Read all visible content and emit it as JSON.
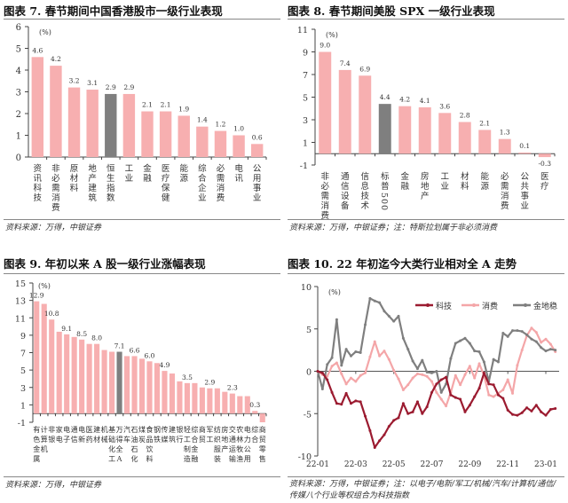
{
  "panels": [
    {
      "title": "图表 7. 春节期间中国香港股市一级行业表现",
      "source": "资料来源：万得，中银证券"
    },
    {
      "title": "图表 8. 春节期间美股 SPX 一级行业表现",
      "source": "资料来源：万得，中银证券；注：特斯拉划属于非必须消费"
    },
    {
      "title": "图表 9. 年初以来 A 股一级行业涨幅表现",
      "source": "资料来源：万得，中银证券"
    },
    {
      "title": "图表 10. 22 年初迄今大类行业相对全 A 走势",
      "source": "资料来源：万得，中银证券；注：以电子/电新/军工/机械/汽车/计算机/通信/传媒八个行业等权组合为科技指数"
    }
  ],
  "colors": {
    "bar": "#F7AFB0",
    "highlight": "#7F7F7F",
    "tech": "#9B1B30",
    "consumer": "#F4A6A8",
    "stable": "#7F7F7F"
  },
  "chart_data": [
    {
      "type": "bar",
      "title": "春节期间中国香港股市一级行业表现",
      "unit_label": "(%)",
      "ylim": [
        0,
        6
      ],
      "yticks": [
        0,
        1,
        2,
        3,
        4,
        5,
        6
      ],
      "categories": [
        "资讯科技",
        "非必需消费",
        "原材料",
        "地产建筑",
        "恒生指数",
        "工业",
        "金融",
        "医疗保健",
        "能源",
        "综合企业",
        "必需消费",
        "电讯",
        "公用事业"
      ],
      "values": [
        4.6,
        4.2,
        3.2,
        3.1,
        2.9,
        2.9,
        2.1,
        2.1,
        1.9,
        1.4,
        1.2,
        1.0,
        0.6
      ],
      "labels": [
        "4.6",
        "4.2",
        "3.2",
        "3.1",
        "2.9",
        "2.9",
        "2.1",
        "2.1",
        "1.9",
        "1.4",
        "1.2",
        "1.0",
        "0.6"
      ],
      "highlight": "恒生指数"
    },
    {
      "type": "bar",
      "title": "春节期间美股 SPX 一级行业表现",
      "unit_label": "(%)",
      "ylim": [
        -1,
        11
      ],
      "yticks": [
        -1,
        1,
        3,
        5,
        7,
        9,
        11
      ],
      "categories": [
        "非必需消费",
        "通信设备",
        "信息技术",
        "标普500",
        "金融",
        "房地产",
        "工业",
        "材料",
        "能源",
        "必需消费",
        "公共事业",
        "医疗"
      ],
      "values": [
        9.0,
        7.4,
        6.9,
        4.4,
        4.2,
        4.1,
        3.6,
        2.8,
        2.1,
        1.3,
        0.1,
        -0.3
      ],
      "labels": [
        "9.0",
        "7.4",
        "6.9",
        "4.4",
        "4.2",
        "4.1",
        "3.6",
        "2.8",
        "2.1",
        "1.3",
        "0.1",
        "-0.3"
      ],
      "highlight": "标普500"
    },
    {
      "type": "bar",
      "title": "年初以来 A 股一级行业涨幅表现",
      "unit_label": "(%)",
      "ylim": [
        -1,
        15
      ],
      "yticks": [
        -1,
        1,
        3,
        5,
        7,
        9,
        11,
        13,
        15
      ],
      "categories": [
        "有色金属",
        "计算机",
        "非银",
        "家电",
        "电子",
        "通信",
        "电新",
        "医药",
        "建材",
        "机械",
        "基础化工",
        "万得全A",
        "汽车",
        "石油石化",
        "煤炭",
        "食品饮料",
        "钢铁",
        "传媒",
        "建筑",
        "银行",
        "轻工制造",
        "综合金融",
        "商贸",
        "军工",
        "纺织服装",
        "房地产",
        "交通运输",
        "农林牧渔",
        "电力公用",
        "综合",
        "商贸零售"
      ],
      "values": [
        12.9,
        12.6,
        10.8,
        9.4,
        9.1,
        8.8,
        8.5,
        8.0,
        8.0,
        7.3,
        7.1,
        7.1,
        6.6,
        6.6,
        6.3,
        6.0,
        5.8,
        4.9,
        4.6,
        3.7,
        3.5,
        3.5,
        3.0,
        2.9,
        2.9,
        2.5,
        2.3,
        2.0,
        2.0,
        0.3,
        -1.0
      ],
      "labels": [
        "12.9",
        "",
        "10.8",
        "",
        "9.1",
        "",
        "8.5",
        "",
        "8.0",
        "",
        "",
        "7.1",
        "",
        "6.6",
        "",
        "6.0",
        "",
        "4.9",
        "",
        "",
        "3.5",
        "",
        "",
        "2.9",
        "",
        "",
        "2.3",
        "",
        "",
        "0.3",
        ""
      ],
      "highlight": "万得全A"
    },
    {
      "type": "line",
      "title": "22 年初迄今大类行业相对全 A 走势",
      "unit_label": "(%)",
      "ylim": [
        -10,
        10
      ],
      "yticks": [
        -10,
        -5,
        0,
        5,
        10
      ],
      "xticks": [
        "22-01",
        "22-03",
        "22-05",
        "22-07",
        "22-09",
        "22-11",
        "23-01"
      ],
      "x_range_months": [
        0,
        12.7
      ],
      "legend": {
        "position": "top-right",
        "entries": [
          "科技",
          "消费",
          "金地稳"
        ]
      },
      "series": [
        {
          "name": "科技",
          "x": [
            0,
            0.25,
            0.5,
            0.75,
            1,
            1.25,
            1.5,
            1.75,
            2,
            2.25,
            2.5,
            2.75,
            3,
            3.25,
            3.5,
            3.75,
            4,
            4.25,
            4.5,
            4.75,
            5,
            5.25,
            5.5,
            5.75,
            6,
            6.25,
            6.5,
            6.75,
            7,
            7.25,
            7.5,
            7.75,
            8,
            8.25,
            8.5,
            8.75,
            9,
            9.25,
            9.5,
            9.75,
            10,
            10.25,
            10.5,
            10.75,
            11,
            11.25,
            11.5,
            11.75,
            12,
            12.25,
            12.5
          ],
          "y": [
            0,
            -0.2,
            -1,
            -2.5,
            -3.8,
            -3.9,
            -2.6,
            -3.8,
            -3.5,
            -3.6,
            -5.3,
            -7,
            -9,
            -8.2,
            -7.5,
            -6.5,
            -5.8,
            -5.5,
            -3.8,
            -5,
            -4.8,
            -3.6,
            -5,
            -4.2,
            -2.5,
            -1.5,
            -1,
            -0.7,
            -2.8,
            -3.1,
            -3.3,
            -4.8,
            -4,
            -3,
            -2,
            -0.2,
            -1.5,
            -1.6,
            -2.8,
            -3.2,
            -4.6,
            -5.1,
            -5.2,
            -4.9,
            -4.3,
            -4.7,
            -4.0,
            -4.8,
            -5.2,
            -4.5,
            -4.4
          ]
        },
        {
          "name": "消费",
          "x": [
            0,
            0.25,
            0.5,
            0.75,
            1,
            1.25,
            1.5,
            1.75,
            2,
            2.25,
            2.5,
            2.75,
            3,
            3.25,
            3.5,
            3.75,
            4,
            4.25,
            4.5,
            4.75,
            5,
            5.25,
            5.5,
            5.75,
            6,
            6.25,
            6.5,
            6.75,
            7,
            7.25,
            7.5,
            7.75,
            8,
            8.25,
            8.5,
            8.75,
            9,
            9.25,
            9.5,
            9.75,
            10,
            10.25,
            10.5,
            10.75,
            11,
            11.25,
            11.5,
            11.75,
            12,
            12.25,
            12.5
          ],
          "y": [
            0,
            -0.4,
            -0.6,
            0.6,
            1,
            -0.3,
            -1.5,
            -0.8,
            -1.2,
            -0.5,
            -0.2,
            1.7,
            3.5,
            1.8,
            2.4,
            1.4,
            0.1,
            -0.9,
            -2.2,
            -1.6,
            -0.8,
            -0.3,
            -0.4,
            -0.6,
            -1.2,
            -2.5,
            -3.3,
            -4.1,
            -2.5,
            -0.5,
            -1.6,
            -0.4,
            0.6,
            -0.8,
            0.9,
            -0.5,
            -2.8,
            -3,
            -2.6,
            -2.2,
            -1,
            -2.6,
            0.7,
            2.5,
            4.2,
            5.1,
            4.6,
            3.4,
            3.8,
            3.2,
            2.3
          ]
        },
        {
          "name": "金地稳",
          "x": [
            0,
            0.25,
            0.5,
            0.75,
            1,
            1.25,
            1.5,
            1.75,
            2,
            2.25,
            2.5,
            2.75,
            3,
            3.25,
            3.5,
            3.75,
            4,
            4.25,
            4.5,
            4.75,
            5,
            5.25,
            5.5,
            5.75,
            6,
            6.25,
            6.5,
            6.75,
            7,
            7.25,
            7.5,
            7.75,
            8,
            8.25,
            8.5,
            8.75,
            9,
            9.25,
            9.5,
            9.75,
            10,
            10.25,
            10.5,
            10.75,
            11,
            11.25,
            11.5,
            11.75,
            12,
            12.25,
            12.5
          ],
          "y": [
            0,
            -2.1,
            0.8,
            1.6,
            6.1,
            0.7,
            2.6,
            1.8,
            2.3,
            2.2,
            5.5,
            8.6,
            8.3,
            8.1,
            7.1,
            6.5,
            5.9,
            6.5,
            3.9,
            2.6,
            1.2,
            0.3,
            1.3,
            -0.1,
            -0.2,
            0,
            -2.5,
            -1.5,
            1.5,
            3.3,
            3.6,
            3.9,
            3.3,
            2.4,
            2.3,
            1.1,
            -1.2,
            1.4,
            1.1,
            4.5,
            4.1,
            4.8,
            4.8,
            4.7,
            4.3,
            3.8,
            3.5,
            2.8,
            2.4,
            2.6,
            2.5
          ]
        }
      ]
    }
  ]
}
